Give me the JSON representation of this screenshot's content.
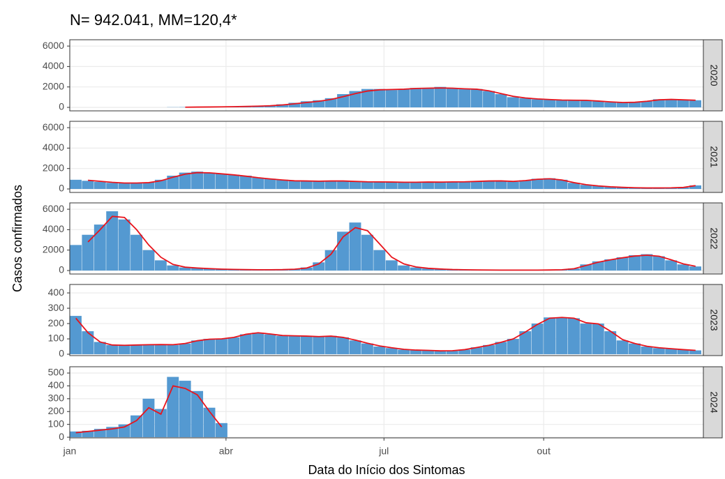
{
  "title": "N= 942.041, MM=120,4*",
  "x_label": "Data do Início dos Sintomas",
  "y_label": "Casos confirmados",
  "xlim": [
    0,
    365
  ],
  "xticks": [
    {
      "value": 0,
      "label": "jan"
    },
    {
      "value": 90,
      "label": "abr"
    },
    {
      "value": 181,
      "label": "jul"
    },
    {
      "value": 273,
      "label": "out"
    }
  ],
  "x": [
    0,
    7,
    14,
    21,
    28,
    35,
    42,
    49,
    56,
    63,
    70,
    77,
    84,
    91,
    98,
    105,
    112,
    119,
    126,
    133,
    140,
    147,
    154,
    161,
    168,
    175,
    182,
    189,
    196,
    203,
    210,
    217,
    224,
    231,
    238,
    245,
    252,
    259,
    266,
    273,
    280,
    287,
    294,
    301,
    308,
    315,
    322,
    329,
    336,
    343,
    350,
    357
  ],
  "chart_data": [
    {
      "type": "bar",
      "strip": "2020",
      "ylim": [
        -340,
        6620
      ],
      "yticks": [
        0,
        2000,
        4000,
        6000
      ],
      "grid": true,
      "bar_color": "#5499d1",
      "line_color": "#e8141c",
      "values": [
        0,
        0,
        0,
        0,
        0,
        0,
        0,
        0,
        20,
        30,
        40,
        60,
        80,
        100,
        120,
        150,
        200,
        300,
        450,
        600,
        700,
        900,
        1300,
        1600,
        1800,
        1800,
        1700,
        1800,
        1900,
        1900,
        2000,
        1900,
        1800,
        1800,
        1600,
        1300,
        1000,
        900,
        800,
        750,
        700,
        700,
        700,
        600,
        500,
        450,
        500,
        600,
        800,
        800,
        750,
        700
      ],
      "line": [
        null,
        null,
        null,
        null,
        null,
        null,
        null,
        null,
        null,
        20,
        30,
        40,
        50,
        70,
        90,
        120,
        160,
        240,
        350,
        480,
        600,
        780,
        1050,
        1350,
        1600,
        1720,
        1750,
        1780,
        1850,
        1880,
        1900,
        1880,
        1820,
        1780,
        1620,
        1350,
        1080,
        920,
        830,
        770,
        720,
        700,
        690,
        620,
        540,
        480,
        500,
        600,
        740,
        780,
        740,
        700
      ]
    },
    {
      "type": "bar",
      "strip": "2021",
      "ylim": [
        -340,
        6620
      ],
      "yticks": [
        0,
        2000,
        4000,
        6000
      ],
      "grid": true,
      "bar_color": "#5499d1",
      "line_color": "#e8141c",
      "values": [
        900,
        800,
        700,
        600,
        550,
        600,
        650,
        900,
        1300,
        1600,
        1700,
        1600,
        1500,
        1400,
        1300,
        1100,
        1000,
        900,
        800,
        800,
        750,
        800,
        800,
        750,
        700,
        700,
        700,
        650,
        650,
        700,
        650,
        700,
        700,
        750,
        800,
        800,
        700,
        850,
        1000,
        1050,
        900,
        600,
        400,
        300,
        200,
        150,
        120,
        100,
        100,
        120,
        150,
        350
      ],
      "line": [
        null,
        850,
        750,
        650,
        580,
        580,
        620,
        800,
        1150,
        1450,
        1600,
        1580,
        1480,
        1380,
        1250,
        1100,
        980,
        880,
        800,
        780,
        760,
        780,
        780,
        740,
        700,
        690,
        680,
        660,
        660,
        680,
        670,
        690,
        700,
        740,
        780,
        790,
        740,
        820,
        950,
        1000,
        880,
        620,
        420,
        300,
        210,
        160,
        120,
        100,
        100,
        110,
        150,
        330
      ]
    },
    {
      "type": "bar",
      "strip": "2022",
      "ylim": [
        -340,
        6620
      ],
      "yticks": [
        0,
        2000,
        4000,
        6000
      ],
      "grid": true,
      "bar_color": "#5499d1",
      "line_color": "#e8141c",
      "values": [
        2500,
        3500,
        4500,
        5800,
        5000,
        3500,
        2000,
        1000,
        500,
        300,
        250,
        200,
        150,
        120,
        100,
        100,
        100,
        100,
        150,
        300,
        800,
        2000,
        3800,
        4700,
        3500,
        2000,
        1000,
        500,
        300,
        200,
        150,
        100,
        80,
        60,
        50,
        50,
        50,
        50,
        50,
        60,
        80,
        200,
        600,
        900,
        1100,
        1300,
        1500,
        1600,
        1400,
        1000,
        600,
        400
      ],
      "line": [
        null,
        2800,
        4000,
        5300,
        5200,
        4000,
        2500,
        1300,
        600,
        330,
        250,
        190,
        140,
        110,
        90,
        80,
        80,
        90,
        130,
        250,
        650,
        1600,
        3300,
        4200,
        3900,
        2600,
        1300,
        650,
        350,
        220,
        150,
        100,
        80,
        60,
        50,
        45,
        45,
        45,
        45,
        55,
        80,
        180,
        500,
        820,
        1050,
        1250,
        1420,
        1500,
        1400,
        1050,
        650,
        420
      ]
    },
    {
      "type": "bar",
      "strip": "2023",
      "ylim": [
        -9,
        455
      ],
      "yticks": [
        0,
        100,
        200,
        300,
        400
      ],
      "grid": true,
      "bar_color": "#5499d1",
      "line_color": "#e8141c",
      "values": [
        250,
        150,
        80,
        60,
        55,
        60,
        60,
        65,
        60,
        70,
        90,
        100,
        100,
        110,
        130,
        140,
        130,
        120,
        120,
        120,
        115,
        120,
        110,
        90,
        70,
        50,
        40,
        30,
        25,
        25,
        20,
        22,
        30,
        45,
        60,
        80,
        100,
        150,
        200,
        240,
        240,
        235,
        200,
        200,
        150,
        90,
        70,
        50,
        40,
        35,
        30,
        25
      ],
      "line": [
        235,
        140,
        80,
        60,
        58,
        60,
        62,
        63,
        62,
        70,
        88,
        98,
        100,
        110,
        130,
        140,
        132,
        122,
        120,
        118,
        115,
        118,
        110,
        92,
        72,
        54,
        42,
        32,
        27,
        25,
        22,
        23,
        30,
        44,
        58,
        78,
        100,
        145,
        195,
        235,
        240,
        235,
        205,
        198,
        150,
        95,
        70,
        52,
        42,
        36,
        30,
        25
      ]
    },
    {
      "type": "bar",
      "strip": "2024",
      "ylim": [
        -5,
        549
      ],
      "yticks": [
        0,
        100,
        200,
        300,
        400,
        500
      ],
      "grid": true,
      "bar_color": "#5499d1",
      "line_color": "#e8141c",
      "values": [
        45,
        50,
        65,
        80,
        100,
        170,
        300,
        220,
        470,
        440,
        360,
        230,
        110,
        null,
        null,
        null,
        null,
        null,
        null,
        null,
        null,
        null,
        null,
        null,
        null,
        null,
        null,
        null,
        null,
        null,
        null,
        null,
        null,
        null,
        null,
        null,
        null,
        null,
        null,
        null,
        null,
        null,
        null,
        null,
        null,
        null,
        null,
        null,
        null,
        null,
        null,
        null
      ],
      "line": [
        35,
        45,
        55,
        65,
        80,
        130,
        230,
        180,
        400,
        380,
        330,
        200,
        80,
        null,
        null,
        null,
        null,
        null,
        null,
        null,
        null,
        null,
        null,
        null,
        null,
        null,
        null,
        null,
        null,
        null,
        null,
        null,
        null,
        null,
        null,
        null,
        null,
        null,
        null,
        null,
        null,
        null,
        null,
        null,
        null,
        null,
        null,
        null,
        null,
        null,
        null,
        null
      ]
    }
  ]
}
